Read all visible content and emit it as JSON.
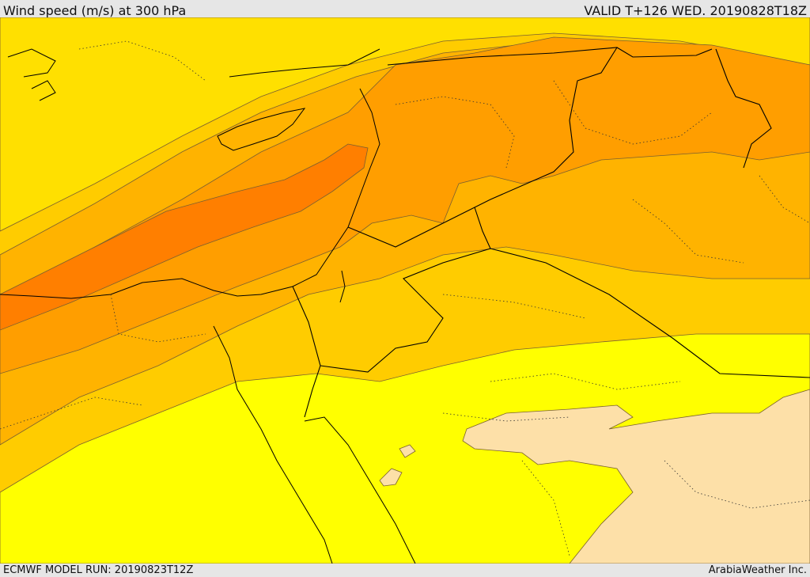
{
  "header": {
    "title": "Wind speed (m/s) at 300 hPa",
    "valid_time": "VALID T+126 WED. 20190828T18Z"
  },
  "footer": {
    "model_run": "ECMWF MODEL RUN: 20190823T12Z",
    "credit": "ArabiaWeather Inc."
  },
  "map": {
    "colors": {
      "band_lt_peach": "#fde0a8",
      "band_yellow": "#ffff00",
      "band_gold": "#ffe000",
      "band_amber": "#ffcc00",
      "band_orange_lt": "#ffb300",
      "band_orange": "#ff9e00",
      "band_orange_dk": "#ff7f00",
      "contour": "#7a6030",
      "border": "#000000"
    }
  }
}
